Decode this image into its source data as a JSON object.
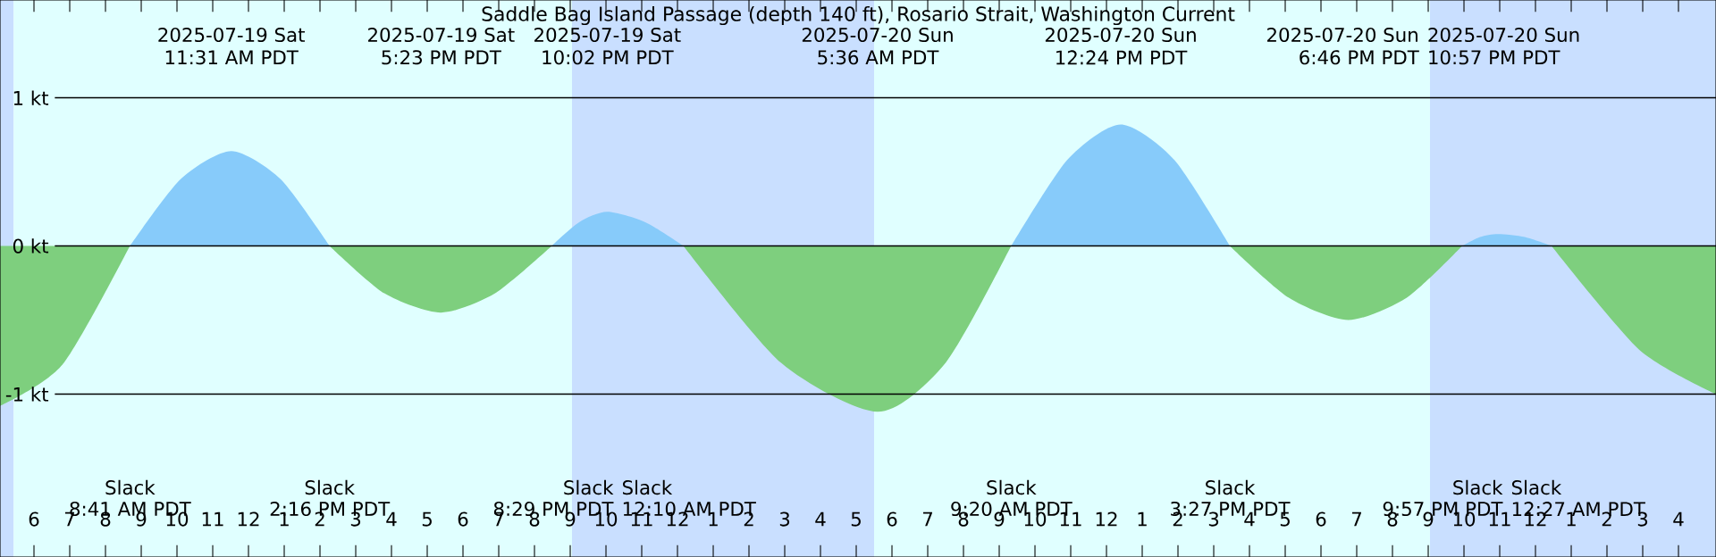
{
  "chart_data": {
    "type": "area",
    "title": "Saddle Bag Island Passage (depth 140 ft), Rosario Strait, Washington Current",
    "x": [
      "2025-07-19T05:03",
      "2025-07-19T06:48",
      "2025-07-19T08:41",
      "2025-07-19T10:06",
      "2025-07-19T11:31",
      "2025-07-19T12:54",
      "2025-07-19T14:16",
      "2025-07-19T15:48",
      "2025-07-19T17:23",
      "2025-07-19T18:54",
      "2025-07-19T20:29",
      "2025-07-19T21:15",
      "2025-07-19T22:02",
      "2025-07-19T23:06",
      "2025-07-20T00:10",
      "2025-07-20T02:54",
      "2025-07-20T05:36",
      "2025-07-20T07:30",
      "2025-07-20T09:20",
      "2025-07-20T10:54",
      "2025-07-20T12:24",
      "2025-07-20T13:54",
      "2025-07-20T15:27",
      "2025-07-20T17:06",
      "2025-07-20T18:46",
      "2025-07-20T20:24",
      "2025-07-20T21:57",
      "2025-07-20T22:27",
      "2025-07-20T22:57",
      "2025-07-20T23:42",
      "2025-07-21T00:27",
      "2025-07-21T02:54",
      "2025-07-21T05:03"
    ],
    "series": [
      {
        "color": "#87cbfa",
        "values": [
          null,
          null,
          0,
          0.45,
          0.64,
          0.45,
          0,
          null,
          null,
          null,
          0,
          0.16,
          0.23,
          0.16,
          0,
          null,
          null,
          null,
          0,
          0.58,
          0.82,
          0.58,
          0,
          null,
          null,
          null,
          0,
          0.06,
          0.08,
          0.06,
          0,
          null,
          null
        ]
      },
      {
        "color": "#7ecf7e",
        "values": [
          -1.08,
          -0.8,
          0,
          null,
          null,
          null,
          0,
          -0.32,
          -0.45,
          -0.32,
          0,
          null,
          null,
          null,
          0,
          -0.79,
          -1.12,
          -0.79,
          0,
          null,
          null,
          null,
          0,
          -0.35,
          -0.5,
          -0.35,
          0,
          null,
          null,
          null,
          0,
          -0.7,
          -1.0
        ]
      }
    ],
    "xlim": [
      "2025-07-19T05:03",
      "2025-07-21T05:03"
    ],
    "xticks": [
      {
        "value": "2025-07-19T06:00",
        "label": "6"
      },
      {
        "value": "2025-07-19T07:00",
        "label": "7"
      },
      {
        "value": "2025-07-19T08:00",
        "label": "8"
      },
      {
        "value": "2025-07-19T09:00",
        "label": "9"
      },
      {
        "value": "2025-07-19T10:00",
        "label": "10"
      },
      {
        "value": "2025-07-19T11:00",
        "label": "11"
      },
      {
        "value": "2025-07-19T12:00",
        "label": "12"
      },
      {
        "value": "2025-07-19T13:00",
        "label": "1"
      },
      {
        "value": "2025-07-19T14:00",
        "label": "2"
      },
      {
        "value": "2025-07-19T15:00",
        "label": "3"
      },
      {
        "value": "2025-07-19T16:00",
        "label": "4"
      },
      {
        "value": "2025-07-19T17:00",
        "label": "5"
      },
      {
        "value": "2025-07-19T18:00",
        "label": "6"
      },
      {
        "value": "2025-07-19T19:00",
        "label": "7"
      },
      {
        "value": "2025-07-19T20:00",
        "label": "8"
      },
      {
        "value": "2025-07-19T21:00",
        "label": "9"
      },
      {
        "value": "2025-07-19T22:00",
        "label": "10"
      },
      {
        "value": "2025-07-19T23:00",
        "label": "11"
      },
      {
        "value": "2025-07-20T00:00",
        "label": "12"
      },
      {
        "value": "2025-07-20T01:00",
        "label": "1"
      },
      {
        "value": "2025-07-20T02:00",
        "label": "2"
      },
      {
        "value": "2025-07-20T03:00",
        "label": "3"
      },
      {
        "value": "2025-07-20T04:00",
        "label": "4"
      },
      {
        "value": "2025-07-20T05:00",
        "label": "5"
      },
      {
        "value": "2025-07-20T06:00",
        "label": "6"
      },
      {
        "value": "2025-07-20T07:00",
        "label": "7"
      },
      {
        "value": "2025-07-20T08:00",
        "label": "8"
      },
      {
        "value": "2025-07-20T09:00",
        "label": "9"
      },
      {
        "value": "2025-07-20T10:00",
        "label": "10"
      },
      {
        "value": "2025-07-20T11:00",
        "label": "11"
      },
      {
        "value": "2025-07-20T12:00",
        "label": "12"
      },
      {
        "value": "2025-07-20T13:00",
        "label": "1"
      },
      {
        "value": "2025-07-20T14:00",
        "label": "2"
      },
      {
        "value": "2025-07-20T15:00",
        "label": "3"
      },
      {
        "value": "2025-07-20T16:00",
        "label": "4"
      },
      {
        "value": "2025-07-20T17:00",
        "label": "5"
      },
      {
        "value": "2025-07-20T18:00",
        "label": "6"
      },
      {
        "value": "2025-07-20T19:00",
        "label": "7"
      },
      {
        "value": "2025-07-20T20:00",
        "label": "8"
      },
      {
        "value": "2025-07-20T21:00",
        "label": "9"
      },
      {
        "value": "2025-07-20T22:00",
        "label": "10"
      },
      {
        "value": "2025-07-20T23:00",
        "label": "11"
      },
      {
        "value": "2025-07-21T00:00",
        "label": "12"
      },
      {
        "value": "2025-07-21T01:00",
        "label": "1"
      },
      {
        "value": "2025-07-21T02:00",
        "label": "2"
      },
      {
        "value": "2025-07-21T03:00",
        "label": "3"
      },
      {
        "value": "2025-07-21T04:00",
        "label": "4"
      }
    ],
    "yticks": [
      {
        "value": 1,
        "label": "1 kt"
      },
      {
        "value": 0,
        "label": "0 kt"
      },
      {
        "value": -1,
        "label": "-1 kt"
      }
    ],
    "grid": "y",
    "bands": [
      {
        "axis": "x",
        "from": "2025-07-19T05:03",
        "to": "2025-07-19T05:26",
        "color": "#c9dfff"
      },
      {
        "axis": "x",
        "from": "2025-07-19T05:26",
        "to": "2025-07-19T21:03",
        "color": "#e0ffff"
      },
      {
        "axis": "x",
        "from": "2025-07-19T21:03",
        "to": "2025-07-20T05:30",
        "color": "#c9dfff"
      },
      {
        "axis": "x",
        "from": "2025-07-20T05:30",
        "to": "2025-07-20T21:03",
        "color": "#e0ffff"
      },
      {
        "axis": "x",
        "from": "2025-07-20T21:03",
        "to": "2025-07-21T05:03",
        "color": "#c9dfff"
      }
    ],
    "ylim": [
      -2.1,
      1.66
    ],
    "annotations": [
      "2025-07-19 Sat",
      "11:31 AM PDT",
      "2025-07-19 Sat",
      "5:23 PM PDT",
      "2025-07-19 Sat",
      "10:02 PM PDT",
      "2025-07-20 Sun",
      "5:36 AM PDT",
      "2025-07-20 Sun",
      "12:24 PM PDT",
      "2025-07-20 Sun",
      "6:46 PM PDT",
      "2025-07-20 Sun",
      "10:57 PM PDT",
      "Slack",
      "8:41 AM PDT",
      "Slack",
      "2:16 PM PDT",
      "Slack",
      "8:29 PM PDT",
      "Slack",
      "12:10 AM PDT",
      "Slack",
      "9:20 AM PDT",
      "Slack",
      "3:27 PM PDT",
      "Slack",
      "9:57 PM PDT",
      "Slack",
      "12:27 AM PDT"
    ]
  }
}
